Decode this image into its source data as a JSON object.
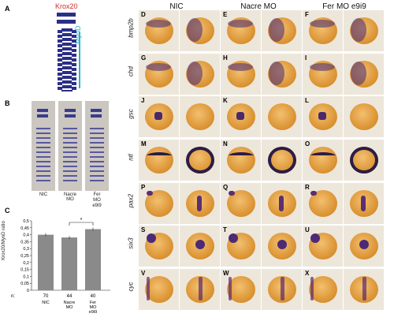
{
  "panel_labels": {
    "A": "A",
    "B": "B",
    "C": "C"
  },
  "schematic": {
    "krox": "Krox20",
    "myod": "MyoD"
  },
  "b_captions": [
    "NIC",
    "Nacre\nMO",
    "Fer\nMO\ne9i9"
  ],
  "grid": {
    "columns": [
      "NIC",
      "Nacre MO",
      "Fer MO e9i9"
    ],
    "rows": [
      {
        "gene": "bmp2b",
        "letters": [
          "D",
          "E",
          "F"
        ]
      },
      {
        "gene": "chd",
        "letters": [
          "G",
          "H",
          "I"
        ]
      },
      {
        "gene": "gsc",
        "letters": [
          "J",
          "K",
          "L"
        ]
      },
      {
        "gene": "ntl",
        "letters": [
          "M",
          "N",
          "O"
        ]
      },
      {
        "gene": "pax2",
        "letters": [
          "P",
          "Q",
          "R"
        ]
      },
      {
        "gene": "six3",
        "letters": [
          "S",
          "T",
          "U"
        ]
      },
      {
        "gene": "cyc",
        "letters": [
          "V",
          "W",
          "X"
        ]
      }
    ]
  },
  "chart_data": {
    "type": "bar",
    "ylabel": "Krox20/MyoD ratio",
    "ylim": [
      0,
      0.5
    ],
    "yticks": [
      "0",
      "0,05",
      "0,1",
      "0,15",
      "0,2",
      "0,25",
      "0,3",
      "0,35",
      "0,4",
      "0,45",
      "0,5"
    ],
    "categories": [
      "NIC",
      "Nacre\nMO",
      "Fer\nMO\ne9i9"
    ],
    "values": [
      0.4,
      0.38,
      0.44
    ],
    "n_label": "n:",
    "n": [
      "70",
      "44",
      "40"
    ],
    "significance": "*"
  }
}
